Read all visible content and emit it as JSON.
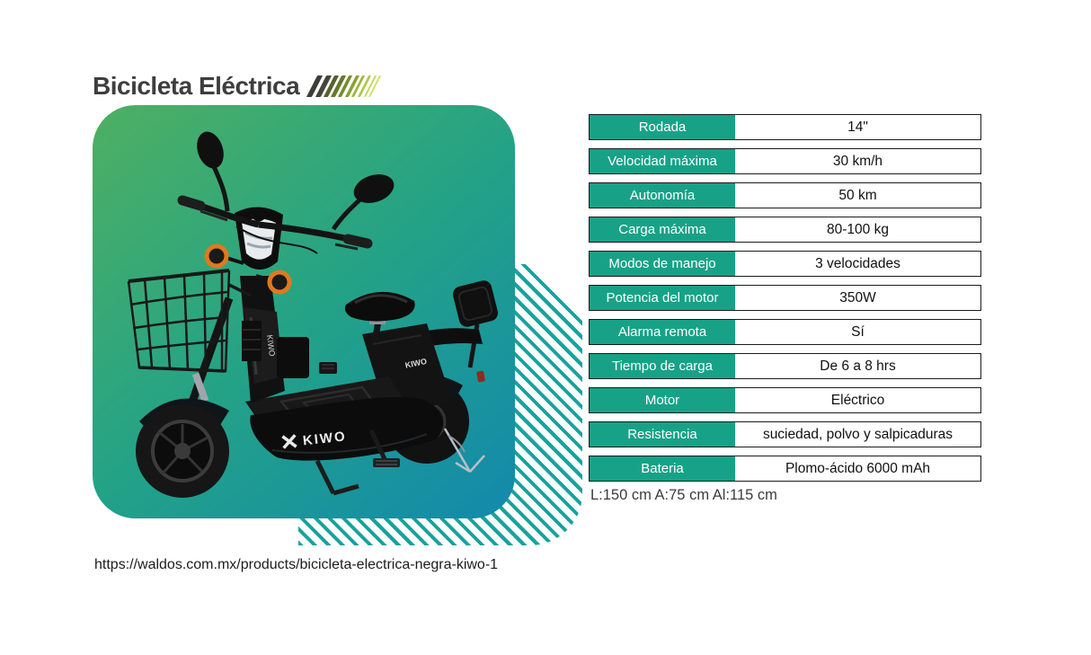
{
  "header": {
    "title": "Bicicleta Eléctrica"
  },
  "card": {
    "brand": "KIWO",
    "brand_small": "KIWO",
    "brand_vertical": "KIWO"
  },
  "specs_table": {
    "rows": [
      {
        "label": "Rodada",
        "value": "14\""
      },
      {
        "label": "Velocidad máxima",
        "value": "30 km/h"
      },
      {
        "label": "Autonomía",
        "value": "50 km"
      },
      {
        "label": "Carga máxima",
        "value": "80-100 kg"
      },
      {
        "label": "Modos de manejo",
        "value": "3 velocidades"
      },
      {
        "label": "Potencia del motor",
        "value": "350W"
      },
      {
        "label": "Alarma remota",
        "value": "Sí"
      },
      {
        "label": "Tiempo de carga",
        "value": "De 6 a 8 hrs"
      },
      {
        "label": "Motor",
        "value": "Eléctrico"
      },
      {
        "label": "Resistencia",
        "value": "suciedad, polvo y salpicaduras"
      },
      {
        "label": "Bateria",
        "value": "Plomo-ácido 6000 mAh"
      }
    ]
  },
  "dimensions_text": "L:150 cm A:75 cm Al:115 cm",
  "source_url": "https://waldos.com.mx/products/bicicleta-electrica-negra-kiwo-1",
  "colors": {
    "title_text": "#3f3e3e",
    "card_gradient_start": "#4eb062",
    "card_gradient_mid": "#23a287",
    "card_gradient_end": "#1289ad",
    "table_label_bg": "#17a287",
    "table_border": "#1b1b1b",
    "stripe_teal": "#18a29d",
    "slash_colors": [
      "#3e3e38",
      "#45453a",
      "#55602e",
      "#66782c",
      "#768c2f",
      "#8aa135",
      "#9cb43d",
      "#afc747",
      "#bfd452",
      "#cde05e"
    ]
  }
}
